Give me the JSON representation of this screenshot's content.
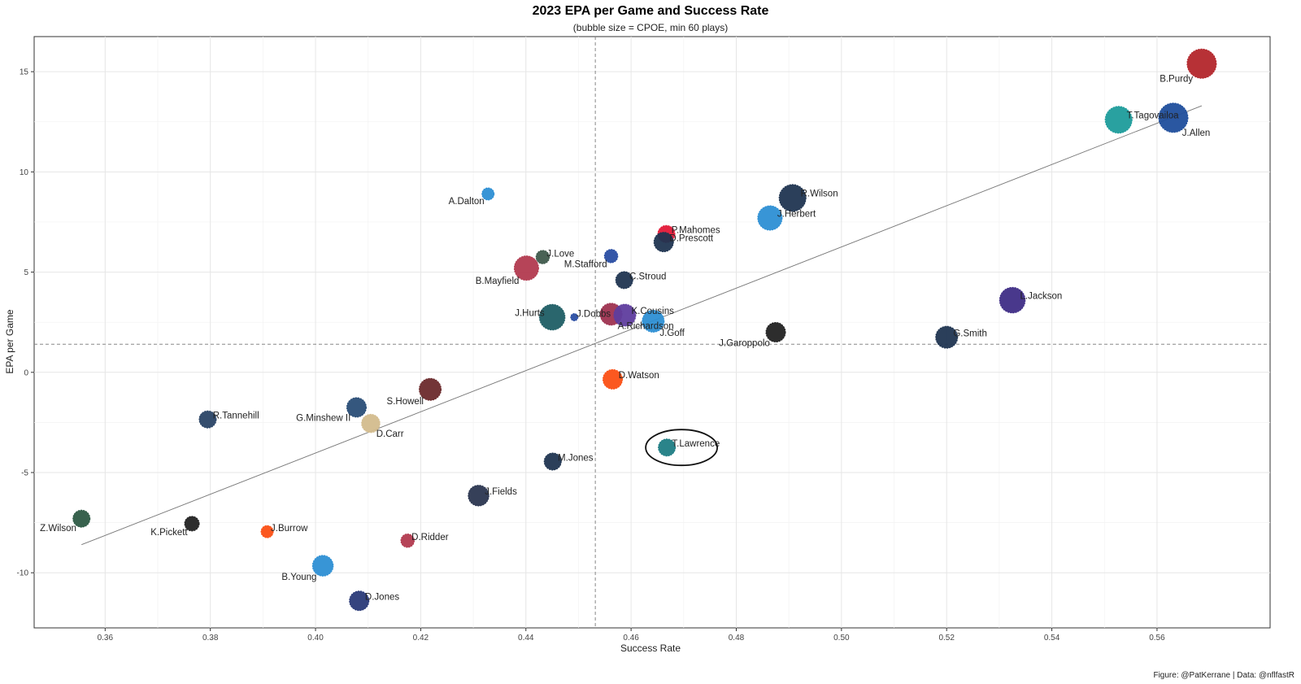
{
  "chart_data": {
    "type": "scatter",
    "title": "2023 EPA per Game and Success Rate",
    "subtitle": "(bubble size = CPOE, min 60 plays)",
    "xlabel": "Success Rate",
    "ylabel": "EPA per Game",
    "caption": "Figure: @PatKerrane | Data: @nflfastR",
    "xlim": [
      0.3465,
      0.5815
    ],
    "ylim": [
      -12.75,
      16.75
    ],
    "xticks": [
      0.36,
      0.38,
      0.4,
      0.42,
      0.44,
      0.46,
      0.48,
      0.5,
      0.52,
      0.54,
      0.56
    ],
    "xtick_labels": [
      "0.36",
      "0.38",
      "0.40",
      "0.42",
      "0.44",
      "0.46",
      "0.48",
      "0.50",
      "0.52",
      "0.54",
      "0.56"
    ],
    "yticks": [
      -10,
      -5,
      0,
      5,
      10,
      15
    ],
    "ytick_labels": [
      "-10",
      "-5",
      "0",
      "5",
      "10",
      "15"
    ],
    "mean_x": 0.4532,
    "mean_y": 1.4,
    "trend_line": {
      "x": [
        0.3555,
        0.5685
      ],
      "y": [
        -8.6,
        13.3
      ]
    },
    "highlight": {
      "label": "T.Lawrence"
    },
    "points": [
      {
        "label": "B.Purdy",
        "x": 0.5685,
        "y": 15.4,
        "size": 10,
        "color": "#b3262b"
      },
      {
        "label": "T.Tagovailoa",
        "x": 0.5527,
        "y": 12.6,
        "size": 9,
        "color": "#1d9c9b"
      },
      {
        "label": "J.Allen",
        "x": 0.5631,
        "y": 12.7,
        "size": 10,
        "color": "#1f4e9c"
      },
      {
        "label": "R.Wilson",
        "x": 0.4907,
        "y": 8.7,
        "size": 9,
        "color": "#203551"
      },
      {
        "label": "J.Herbert",
        "x": 0.4864,
        "y": 7.7,
        "size": 8,
        "color": "#2d8fd4"
      },
      {
        "label": "A.Dalton",
        "x": 0.4328,
        "y": 8.9,
        "size": 3,
        "color": "#2d8fd4"
      },
      {
        "label": "P.Mahomes",
        "x": 0.4667,
        "y": 6.9,
        "size": 5,
        "color": "#e31837"
      },
      {
        "label": "D.Prescott",
        "x": 0.4662,
        "y": 6.5,
        "size": 6,
        "color": "#203551"
      },
      {
        "label": "J.Love",
        "x": 0.4432,
        "y": 5.75,
        "size": 3.5,
        "color": "#3f5a4c"
      },
      {
        "label": "M.Stafford",
        "x": 0.4562,
        "y": 5.8,
        "size": 3.5,
        "color": "#2a4ea3"
      },
      {
        "label": "B.Mayfield",
        "x": 0.4401,
        "y": 5.2,
        "size": 8,
        "color": "#b23a4f"
      },
      {
        "label": "C.Stroud",
        "x": 0.4587,
        "y": 4.6,
        "size": 5,
        "color": "#203551"
      },
      {
        "label": "L.Jackson",
        "x": 0.5325,
        "y": 3.6,
        "size": 8.5,
        "color": "#3f2d86"
      },
      {
        "label": "J.Hurts",
        "x": 0.445,
        "y": 2.75,
        "size": 8.5,
        "color": "#1f5e65"
      },
      {
        "label": "J.Dobbs",
        "x": 0.4492,
        "y": 2.75,
        "size": 1,
        "color": "#2a4ea3"
      },
      {
        "label": "A.Richardson",
        "x": 0.4562,
        "y": 2.9,
        "size": 7,
        "color": "#9e3250"
      },
      {
        "label": "K.Cousins",
        "x": 0.4588,
        "y": 2.85,
        "size": 7,
        "color": "#5f3d9e"
      },
      {
        "label": "J.Goff",
        "x": 0.4642,
        "y": 2.55,
        "size": 7,
        "color": "#2d8fd4"
      },
      {
        "label": "J.Garoppolo",
        "x": 0.4875,
        "y": 2.0,
        "size": 6,
        "color": "#222222"
      },
      {
        "label": "G.Smith",
        "x": 0.52,
        "y": 1.75,
        "size": 7,
        "color": "#203551"
      },
      {
        "label": "D.Watson",
        "x": 0.4565,
        "y": -0.35,
        "size": 6,
        "color": "#fb4f14"
      },
      {
        "label": "S.Howell",
        "x": 0.4218,
        "y": -0.85,
        "size": 7,
        "color": "#6b2a2c"
      },
      {
        "label": "G.Minshew II",
        "x": 0.4078,
        "y": -1.75,
        "size": 6,
        "color": "#2a4e77"
      },
      {
        "label": "D.Carr",
        "x": 0.4105,
        "y": -2.55,
        "size": 5.5,
        "color": "#d3bc8d"
      },
      {
        "label": "R.Tannehill",
        "x": 0.3795,
        "y": -2.35,
        "size": 5,
        "color": "#2a4466"
      },
      {
        "label": "T.Lawrence",
        "x": 0.4668,
        "y": -3.75,
        "size": 5,
        "color": "#1f7d84"
      },
      {
        "label": "M.Jones",
        "x": 0.4451,
        "y": -4.45,
        "size": 5,
        "color": "#203551"
      },
      {
        "label": "J.Fields",
        "x": 0.431,
        "y": -6.15,
        "size": 6.5,
        "color": "#2b3650"
      },
      {
        "label": "Z.Wilson",
        "x": 0.3555,
        "y": -7.3,
        "size": 5,
        "color": "#2d5a45"
      },
      {
        "label": "K.Pickett",
        "x": 0.3765,
        "y": -7.55,
        "size": 4,
        "color": "#222222"
      },
      {
        "label": "J.Burrow",
        "x": 0.3908,
        "y": -7.95,
        "size": 3,
        "color": "#fb4f14"
      },
      {
        "label": "D.Ridder",
        "x": 0.4175,
        "y": -8.4,
        "size": 3.5,
        "color": "#b23a4f"
      },
      {
        "label": "B.Young",
        "x": 0.4014,
        "y": -9.65,
        "size": 6.5,
        "color": "#2d8fd4"
      },
      {
        "label": "D.Jones",
        "x": 0.4083,
        "y": -11.4,
        "size": 6,
        "color": "#2a3a78"
      }
    ]
  }
}
